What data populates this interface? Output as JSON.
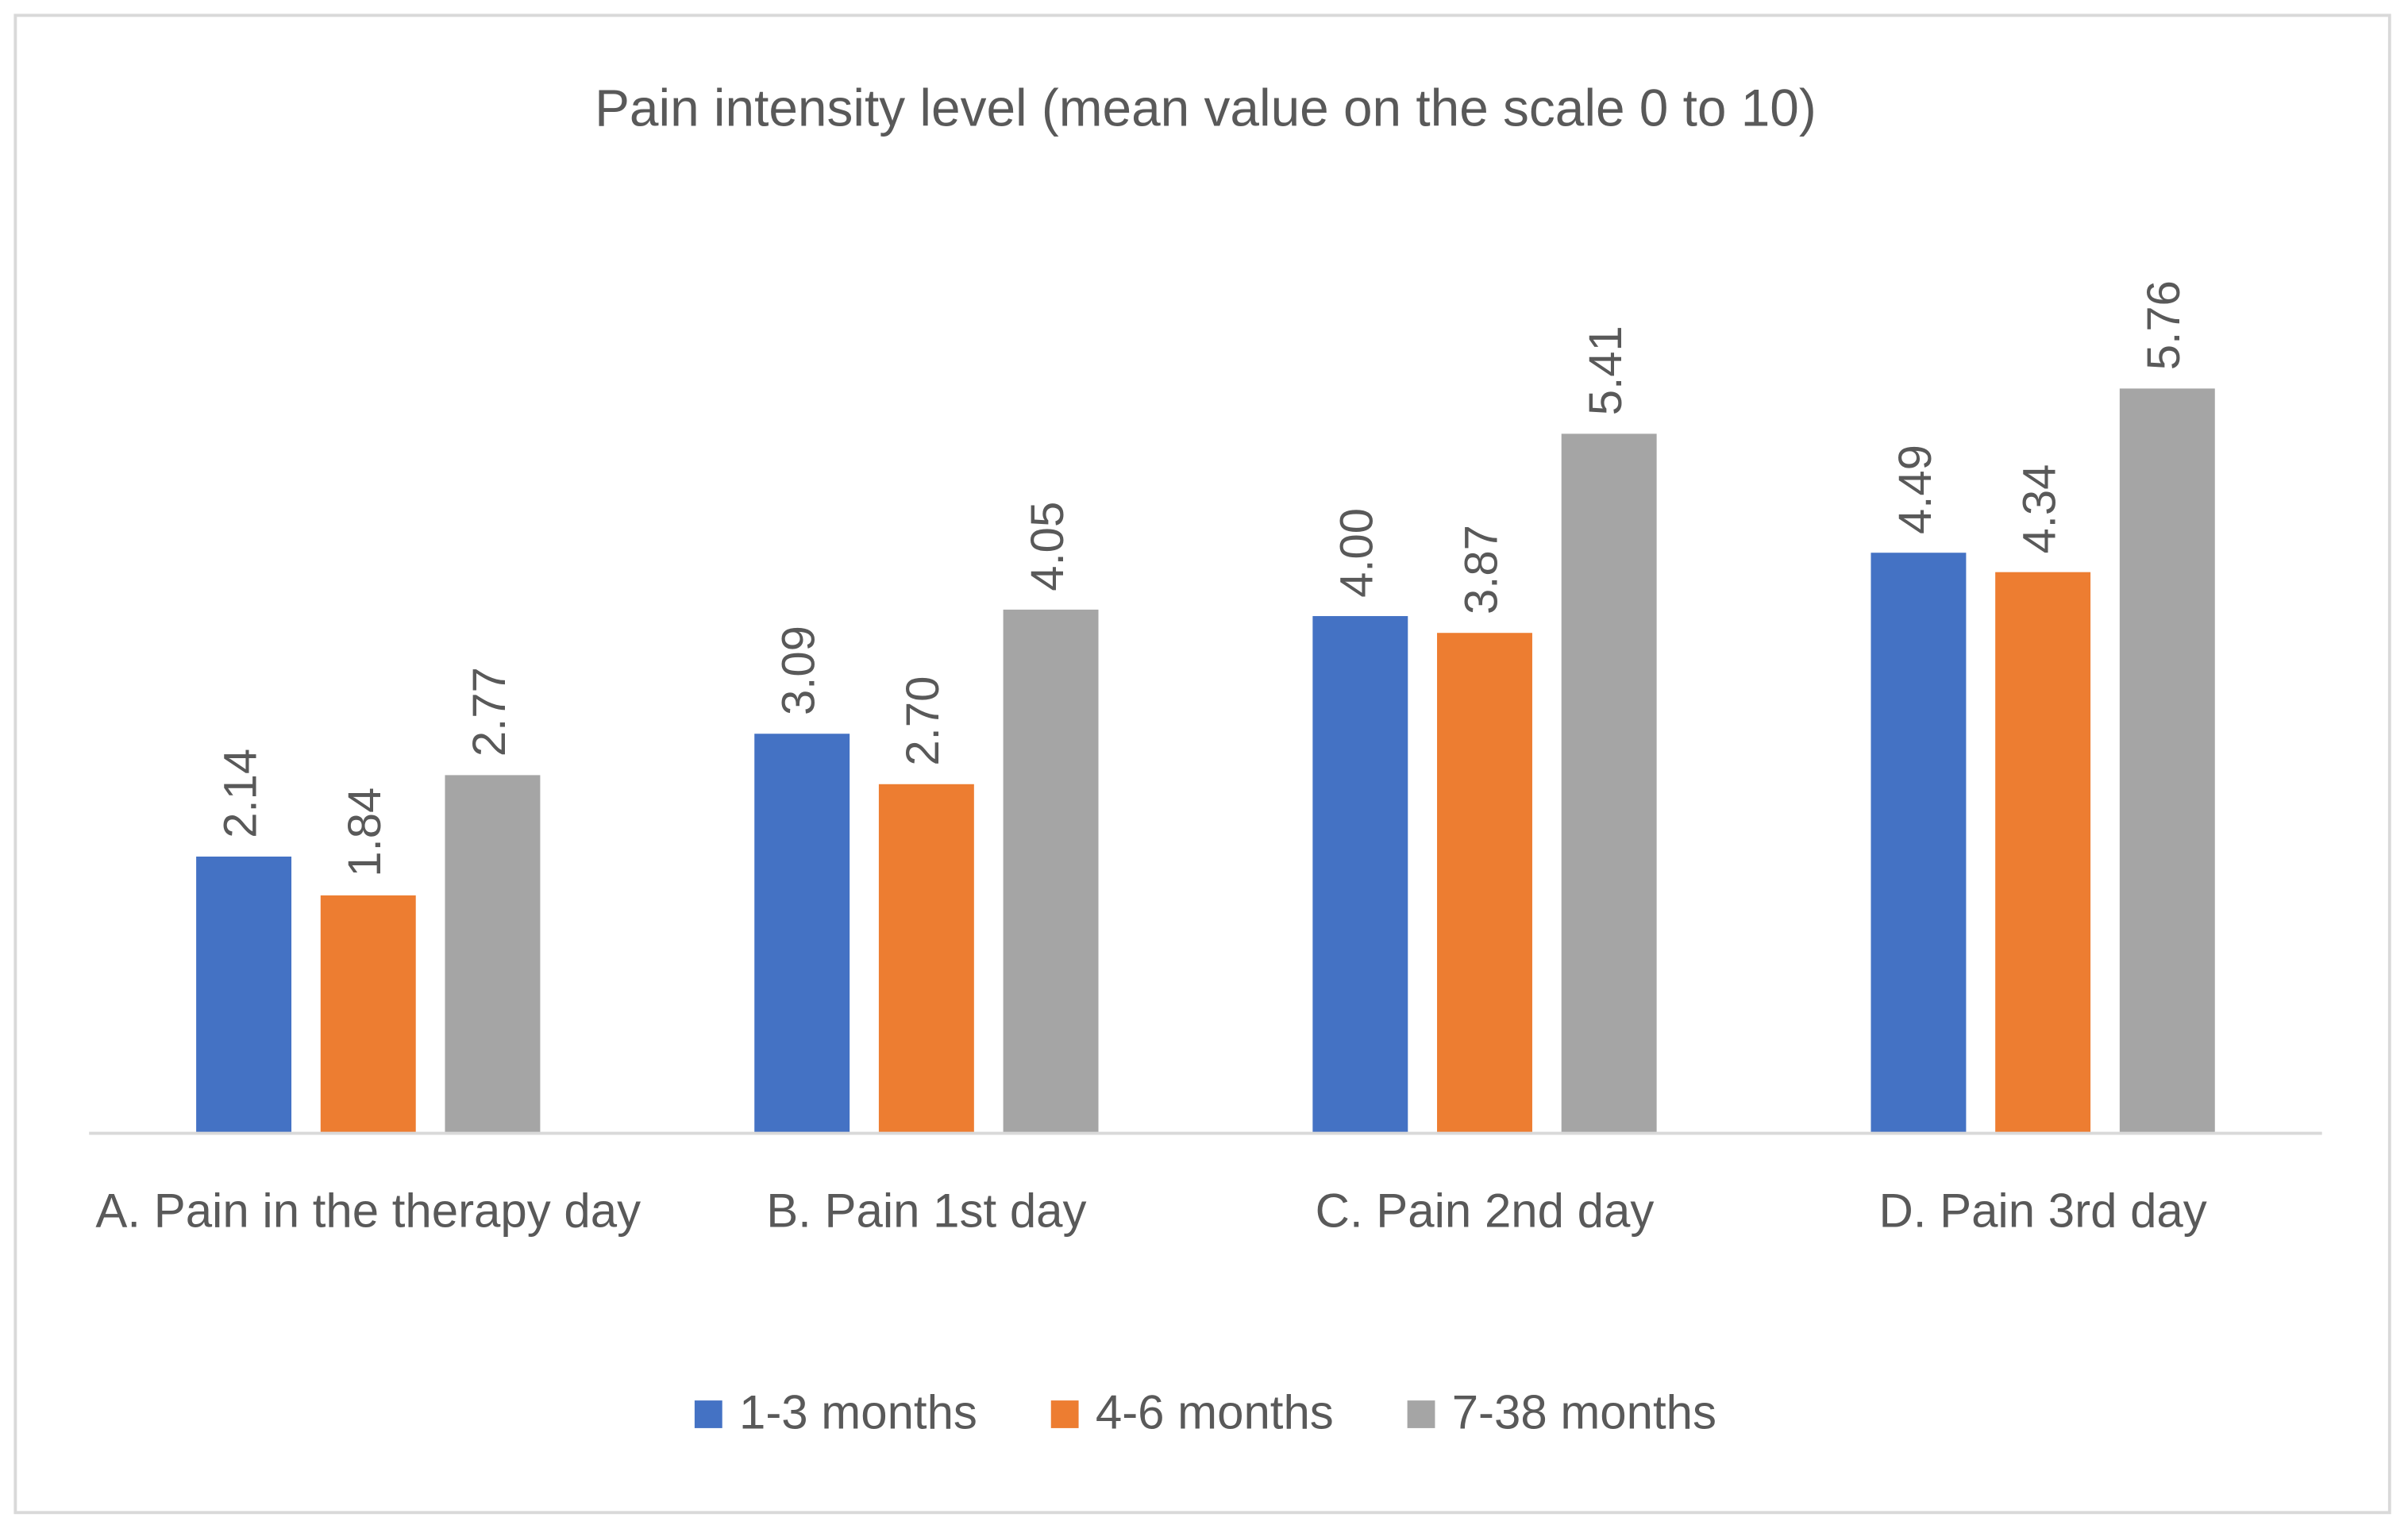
{
  "chart_data": {
    "type": "bar",
    "title": "Pain intensity level (mean value on the scale 0 to 10)",
    "categories": [
      "A. Pain in the therapy day",
      "B. Pain 1st day",
      "C. Pain 2nd day",
      "D. Pain 3rd day"
    ],
    "series": [
      {
        "name": "1-3 months",
        "color": "#4472c4",
        "values": [
          2.14,
          3.09,
          4.0,
          4.49
        ],
        "value_labels": [
          "2.14",
          "3.09",
          "4.00",
          "4.49"
        ]
      },
      {
        "name": "4-6 months",
        "color": "#ed7d31",
        "values": [
          1.84,
          2.7,
          3.87,
          4.34
        ],
        "value_labels": [
          "1.84",
          "2.70",
          "3.87",
          "4.34"
        ]
      },
      {
        "name": "7-38 months",
        "color": "#a5a5a5",
        "values": [
          2.77,
          4.05,
          5.41,
          5.76
        ],
        "value_labels": [
          "2.77",
          "4.05",
          "5.41",
          "5.76"
        ]
      }
    ],
    "ylim": [
      0,
      7
    ],
    "legend": "bottom"
  }
}
